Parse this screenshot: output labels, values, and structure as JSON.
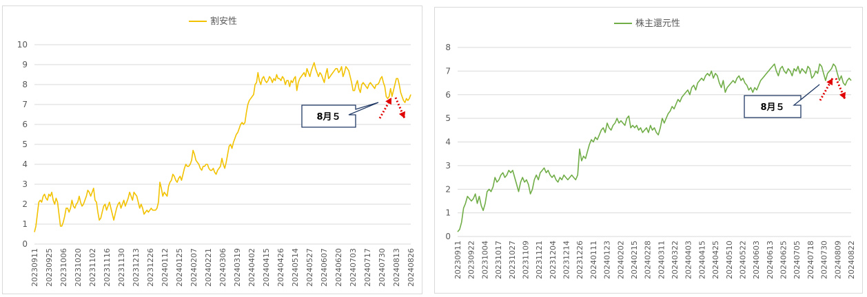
{
  "chart_data": [
    {
      "type": "line",
      "series": [
        {
          "name": "割安性",
          "color": "#f2c200",
          "values": [
            0.6,
            0.9,
            1.5,
            2.1,
            2.2,
            2.1,
            2.4,
            2.5,
            2.3,
            2.2,
            2.5,
            2.4,
            2.6,
            2.2,
            2.0,
            2.3,
            2.1,
            1.5,
            0.9,
            0.9,
            1.1,
            1.4,
            1.8,
            1.8,
            1.6,
            1.8,
            2.2,
            1.9,
            1.8,
            2.0,
            2.1,
            2.4,
            2.1,
            1.9,
            2.0,
            2.2,
            2.4,
            2.7,
            2.6,
            2.4,
            2.6,
            2.8,
            2.2,
            2.1,
            1.6,
            1.2,
            1.3,
            1.6,
            1.9,
            2.0,
            1.7,
            1.9,
            2.1,
            1.8,
            1.5,
            1.2,
            1.5,
            1.8,
            2.0,
            2.1,
            1.8,
            2.0,
            2.2,
            1.9,
            2.1,
            2.3,
            2.6,
            2.4,
            2.2,
            2.6,
            2.5,
            2.4,
            2.1,
            1.8,
            2.0,
            1.8,
            1.5,
            1.6,
            1.7,
            1.6,
            1.7,
            1.8,
            1.7,
            1.7,
            1.7,
            1.8,
            2.1,
            3.1,
            2.8,
            2.4,
            2.6,
            2.5,
            2.4,
            2.9,
            3.1,
            3.2,
            3.5,
            3.4,
            3.2,
            3.1,
            3.3,
            3.4,
            3.2,
            3.5,
            3.8,
            4.0,
            3.9,
            3.9,
            4.0,
            4.2,
            4.7,
            4.5,
            4.2,
            4.1,
            4.0,
            3.8,
            3.7,
            3.9,
            3.9,
            4.0,
            4.0,
            3.8,
            3.7,
            3.7,
            3.8,
            3.6,
            3.5,
            3.7,
            3.8,
            3.9,
            4.3,
            4.0,
            3.8,
            4.1,
            4.5,
            4.9,
            5.0,
            4.8,
            5.1,
            5.3,
            5.5,
            5.6,
            5.8,
            6.0,
            6.1,
            6.0,
            6.1,
            6.6,
            7.0,
            7.2,
            7.3,
            7.4,
            7.5,
            8.0,
            8.1,
            8.6,
            8.2,
            8.0,
            8.3,
            8.4,
            8.2,
            8.1,
            8.2,
            8.4,
            8.3,
            8.1,
            8.3,
            8.2,
            8.5,
            8.3,
            8.3,
            8.2,
            8.4,
            8.3,
            8.0,
            8.2,
            8.2,
            7.9,
            8.2,
            8.1,
            8.3,
            8.4,
            7.7,
            8.1,
            8.3,
            8.4,
            8.5,
            8.6,
            8.4,
            8.8,
            8.6,
            8.4,
            8.7,
            8.9,
            9.1,
            8.8,
            8.6,
            8.4,
            8.6,
            8.5,
            8.3,
            8.1,
            8.5,
            8.8,
            8.3,
            8.4,
            8.5,
            8.6,
            8.7,
            8.8,
            8.8,
            8.6,
            8.7,
            8.9,
            8.4,
            8.6,
            8.9,
            8.8,
            8.7,
            8.4,
            8.1,
            7.7,
            7.7,
            8.0,
            8.2,
            7.8,
            7.6,
            8.0,
            8.1,
            8.0,
            7.9,
            7.8,
            8.0,
            8.1,
            8.0,
            7.9,
            7.8,
            8.0,
            8.0,
            8.1,
            8.3,
            8.4,
            8.1,
            7.9,
            7.4,
            7.3,
            7.4,
            7.8,
            7.4,
            7.7,
            8.0,
            8.3,
            8.3,
            8.0,
            7.6,
            7.4,
            7.2,
            7.1,
            7.3,
            7.2,
            7.3,
            7.5
          ]
        }
      ],
      "x_ticks": [
        "20230911",
        "20230925",
        "20231006",
        "20231020",
        "20231102",
        "20231116",
        "20231130",
        "20231213",
        "20231226",
        "20240112",
        "20240125",
        "20240207",
        "20240221",
        "20240306",
        "20240319",
        "20240402",
        "20240415",
        "20240426",
        "20240514",
        "20240527",
        "20240607",
        "20240620",
        "20240703",
        "20240717",
        "20240730",
        "20240813",
        "20240826"
      ],
      "y_ticks": [
        "0",
        "1",
        "2",
        "3",
        "4",
        "5",
        "6",
        "7",
        "8",
        "9",
        "10"
      ],
      "ylim": [
        0,
        10
      ],
      "grid": true,
      "legend_position": "top",
      "annotation": "8月５"
    },
    {
      "type": "line",
      "series": [
        {
          "name": "株主還元性",
          "color": "#70ad47",
          "values": [
            0.2,
            0.3,
            0.6,
            1.2,
            1.4,
            1.7,
            1.6,
            1.5,
            1.6,
            1.8,
            1.4,
            1.7,
            1.3,
            1.1,
            1.4,
            1.9,
            2.0,
            1.9,
            2.1,
            2.5,
            2.3,
            2.4,
            2.6,
            2.7,
            2.5,
            2.6,
            2.8,
            2.7,
            2.8,
            2.5,
            2.2,
            1.9,
            2.3,
            2.5,
            2.3,
            2.4,
            2.2,
            1.8,
            2.0,
            2.4,
            2.6,
            2.4,
            2.7,
            2.8,
            2.9,
            2.7,
            2.8,
            2.6,
            2.5,
            2.6,
            2.4,
            2.3,
            2.5,
            2.4,
            2.6,
            2.5,
            2.4,
            2.5,
            2.6,
            2.5,
            2.4,
            2.6,
            3.7,
            3.2,
            3.4,
            3.3,
            3.6,
            3.9,
            4.1,
            4.0,
            4.2,
            4.1,
            4.3,
            4.5,
            4.6,
            4.4,
            4.8,
            4.6,
            4.5,
            4.7,
            4.8,
            5.0,
            4.8,
            4.9,
            4.8,
            4.7,
            5.0,
            5.1,
            4.6,
            4.7,
            4.6,
            4.7,
            4.5,
            4.6,
            4.4,
            4.5,
            4.6,
            4.4,
            4.7,
            4.5,
            4.6,
            4.4,
            4.3,
            4.6,
            5.0,
            4.8,
            5.0,
            5.2,
            5.3,
            5.5,
            5.4,
            5.6,
            5.8,
            5.7,
            5.9,
            6.0,
            6.1,
            6.2,
            6.0,
            6.3,
            6.4,
            6.2,
            6.5,
            6.6,
            6.7,
            6.6,
            6.8,
            6.9,
            6.8,
            7.0,
            6.7,
            6.9,
            6.8,
            6.5,
            6.3,
            6.6,
            6.1,
            6.3,
            6.4,
            6.5,
            6.6,
            6.5,
            6.7,
            6.8,
            6.6,
            6.7,
            6.5,
            6.4,
            6.2,
            6.3,
            6.1,
            6.3,
            6.2,
            6.4,
            6.6,
            6.7,
            6.8,
            6.9,
            7.0,
            7.1,
            7.2,
            7.3,
            7.0,
            6.8,
            7.1,
            7.2,
            7.0,
            6.9,
            7.1,
            7.0,
            6.8,
            7.1,
            7.0,
            7.2,
            6.9,
            7.1,
            7.0,
            6.9,
            7.2,
            7.1,
            6.7,
            6.8,
            7.0,
            6.9,
            7.3,
            7.2,
            6.9,
            6.6,
            6.9,
            7.0,
            7.1,
            7.3,
            7.2,
            6.9,
            6.6,
            6.8,
            6.5,
            6.4,
            6.6,
            6.7,
            6.6
          ]
        }
      ],
      "x_ticks": [
        "20230911",
        "20230922",
        "20231004",
        "20231017",
        "20231027",
        "20231109",
        "20231121",
        "20231204",
        "20231214",
        "20231226",
        "20240111",
        "20240123",
        "20240202",
        "20240215",
        "20240228",
        "20240311",
        "20240322",
        "20240403",
        "20240415",
        "20240425",
        "20240510",
        "20240522",
        "20240603",
        "20240613",
        "20240625",
        "20240705",
        "20240718",
        "20240730",
        "20240809",
        "20240822"
      ],
      "y_ticks": [
        "0",
        "1",
        "2",
        "3",
        "4",
        "5",
        "6",
        "7",
        "8"
      ],
      "ylim": [
        0,
        8
      ],
      "grid": true,
      "legend_position": "top",
      "annotation": "8月５"
    }
  ],
  "colors": {
    "callout_border": "#1f3864",
    "arrow": "#e00000",
    "grid": "#d9d9d9",
    "axis_text": "#595959"
  }
}
